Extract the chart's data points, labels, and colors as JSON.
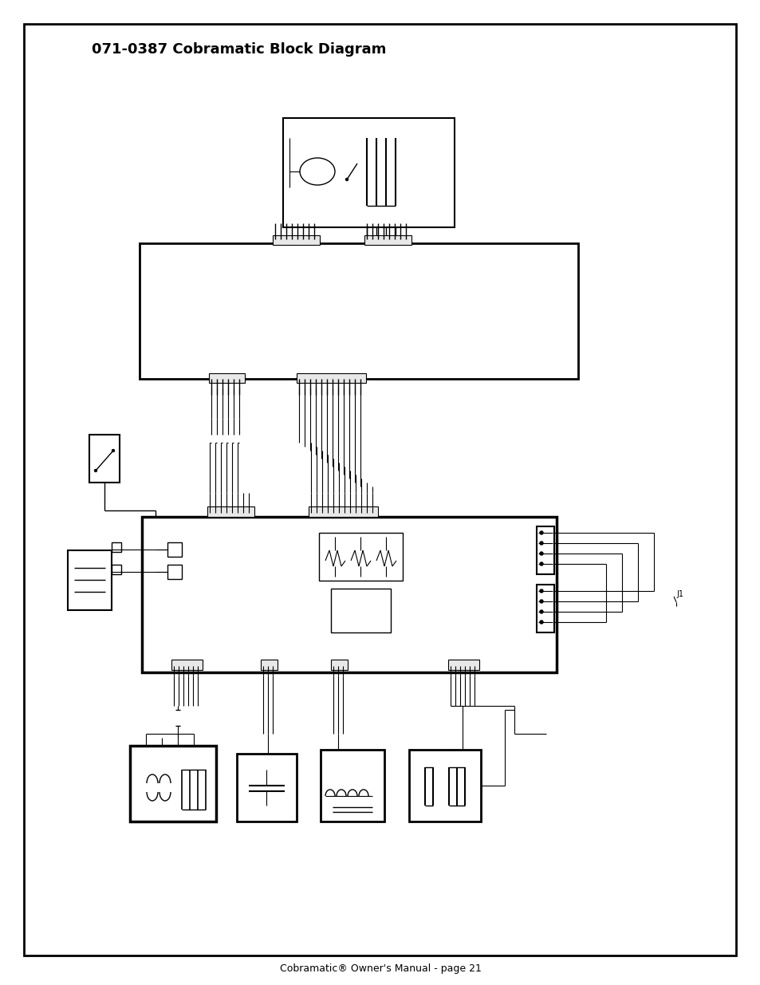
{
  "title": "071-0387 Cobramatic Block Diagram",
  "footer": "Cobramatic® Owner's Manual - page 21",
  "bg_color": "#ffffff",
  "border_color": "#000000",
  "line_color": "#000000",
  "title_fontsize": 13,
  "footer_fontsize": 9
}
